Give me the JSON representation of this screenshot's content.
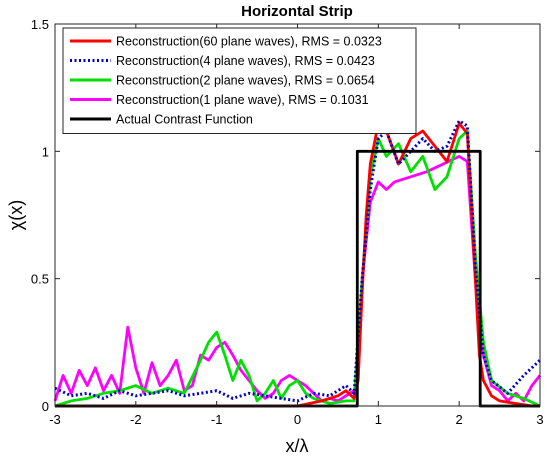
{
  "chart_data": {
    "type": "line",
    "title": "Horizontal Strip",
    "xlabel": "x/λ",
    "ylabel": "χ(x)",
    "xlim": [
      -3,
      3
    ],
    "ylim": [
      0,
      1.5
    ],
    "xticks": [
      -3,
      -2,
      -1,
      0,
      1,
      2,
      3
    ],
    "xtick_labels": [
      "-3",
      "-2",
      "-1",
      "0",
      "1",
      "2",
      "3"
    ],
    "yticks": [
      0,
      0.5,
      1,
      1.5
    ],
    "ytick_labels": [
      "0",
      "0.5",
      "1",
      "1.5"
    ],
    "grid": false,
    "legend_position": "top-left",
    "series": [
      {
        "name": "Reconstruction(60 plane waves), RMS = 0.0323",
        "color": "#ff0000",
        "style": "solid",
        "x": [
          -3,
          -2.5,
          -2,
          -1.5,
          -1,
          -0.5,
          0,
          0.3,
          0.5,
          0.6,
          0.7,
          0.75,
          0.8,
          0.85,
          0.9,
          1.0,
          1.1,
          1.25,
          1.4,
          1.55,
          1.7,
          1.85,
          2.0,
          2.1,
          2.2,
          2.25,
          2.3,
          2.4,
          2.5,
          2.7,
          2.9,
          3.0
        ],
        "y": [
          0.0,
          0.0,
          0.0,
          0.0,
          0.0,
          0.0,
          0.0,
          0.02,
          0.04,
          0.06,
          0.03,
          0.1,
          0.45,
          0.75,
          0.95,
          1.11,
          1.08,
          0.95,
          1.05,
          1.08,
          1.02,
          0.96,
          1.11,
          1.07,
          0.5,
          0.2,
          0.1,
          0.04,
          0.02,
          0.01,
          0.0,
          0.0
        ]
      },
      {
        "name": "Reconstruction(4 plane waves), RMS = 0.0423",
        "color": "#0000cc",
        "style": "dotted",
        "x": [
          -3,
          -2.8,
          -2.6,
          -2.4,
          -2.2,
          -2,
          -1.8,
          -1.6,
          -1.4,
          -1.2,
          -1.0,
          -0.8,
          -0.6,
          -0.4,
          -0.2,
          0,
          0.2,
          0.4,
          0.6,
          0.7,
          0.8,
          0.9,
          1.0,
          1.1,
          1.25,
          1.4,
          1.55,
          1.7,
          1.85,
          2.0,
          2.1,
          2.2,
          2.3,
          2.4,
          2.6,
          2.8,
          3.0
        ],
        "y": [
          0.07,
          0.04,
          0.05,
          0.03,
          0.06,
          0.04,
          0.05,
          0.06,
          0.04,
          0.05,
          0.06,
          0.03,
          0.05,
          0.04,
          0.03,
          0.02,
          0.05,
          0.04,
          0.08,
          0.05,
          0.5,
          0.85,
          1.05,
          1.08,
          0.95,
          1.0,
          1.05,
          1.0,
          1.02,
          1.12,
          1.1,
          0.55,
          0.2,
          0.1,
          0.05,
          0.12,
          0.18
        ]
      },
      {
        "name": "Reconstruction(2 plane waves), RMS = 0.0654",
        "color": "#00e000",
        "style": "solid",
        "x": [
          -3,
          -2.8,
          -2.6,
          -2.4,
          -2.2,
          -2,
          -1.8,
          -1.6,
          -1.4,
          -1.2,
          -1.1,
          -1.0,
          -0.9,
          -0.8,
          -0.7,
          -0.6,
          -0.5,
          -0.4,
          -0.3,
          -0.2,
          -0.1,
          0,
          0.1,
          0.2,
          0.4,
          0.6,
          0.7,
          0.8,
          0.9,
          1.0,
          1.1,
          1.25,
          1.4,
          1.55,
          1.7,
          1.85,
          2.0,
          2.1,
          2.2,
          2.3,
          2.4,
          2.6,
          2.8,
          3.0
        ],
        "y": [
          0.0,
          0.02,
          0.03,
          0.05,
          0.06,
          0.08,
          0.05,
          0.07,
          0.05,
          0.18,
          0.25,
          0.29,
          0.2,
          0.1,
          0.18,
          0.12,
          0.02,
          0.05,
          0.1,
          0.03,
          0.08,
          0.1,
          0.05,
          0.03,
          0.01,
          0.02,
          0.02,
          0.5,
          0.9,
          1.05,
          0.98,
          1.03,
          0.92,
          0.98,
          0.85,
          0.9,
          1.05,
          1.08,
          0.6,
          0.25,
          0.1,
          0.05,
          0.03,
          0.0
        ]
      },
      {
        "name": "Reconstruction(1 plane wave), RMS = 0.1031",
        "color": "#ff00ff",
        "style": "solid",
        "x": [
          -3,
          -2.9,
          -2.8,
          -2.7,
          -2.6,
          -2.5,
          -2.4,
          -2.3,
          -2.2,
          -2.15,
          -2.1,
          -2.0,
          -1.9,
          -1.8,
          -1.7,
          -1.6,
          -1.5,
          -1.4,
          -1.3,
          -1.2,
          -1.1,
          -1.0,
          -0.9,
          -0.8,
          -0.7,
          -0.6,
          -0.5,
          -0.4,
          -0.3,
          -0.2,
          -0.1,
          0,
          0.1,
          0.2,
          0.3,
          0.4,
          0.5,
          0.6,
          0.7,
          0.75,
          0.8,
          0.9,
          1.0,
          1.1,
          1.2,
          1.4,
          1.6,
          1.8,
          2.0,
          2.1,
          2.2,
          2.3,
          2.4,
          2.5,
          2.6,
          2.7,
          2.8,
          2.9,
          3.0
        ],
        "y": [
          0.02,
          0.12,
          0.05,
          0.14,
          0.08,
          0.15,
          0.06,
          0.12,
          0.05,
          0.18,
          0.31,
          0.15,
          0.05,
          0.17,
          0.08,
          0.12,
          0.18,
          0.06,
          0.08,
          0.2,
          0.18,
          0.23,
          0.25,
          0.2,
          0.14,
          0.1,
          0.06,
          0.03,
          0.05,
          0.1,
          0.12,
          0.1,
          0.08,
          0.05,
          0.02,
          0.03,
          0.02,
          0.04,
          0.06,
          0.1,
          0.5,
          0.8,
          0.88,
          0.85,
          0.88,
          0.9,
          0.92,
          0.95,
          0.98,
          0.96,
          0.5,
          0.2,
          0.08,
          0.06,
          0.02,
          0.05,
          0.02,
          0.08,
          0.12
        ]
      },
      {
        "name": "Actual Contrast Function",
        "color": "#000000",
        "style": "solid",
        "x": [
          -3,
          0.74,
          0.74,
          2.26,
          2.26,
          3
        ],
        "y": [
          0,
          0,
          1,
          1,
          0,
          0
        ]
      }
    ]
  }
}
